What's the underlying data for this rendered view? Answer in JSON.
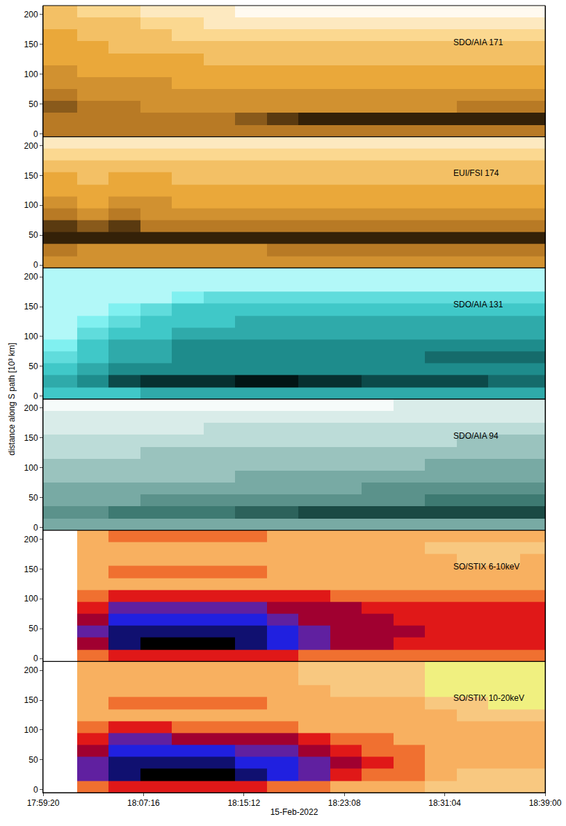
{
  "chart_data": {
    "type": "heatmap",
    "xlabel": "15-Feb-2022",
    "ylabel": "distance along S path [10³ km]",
    "x": [
      "2022-02-15 17:59:20",
      "2022-02-15 18:02:00",
      "2022-02-15 18:04:30",
      "2022-02-15 18:07:00",
      "2022-02-15 18:09:30",
      "2022-02-15 18:12:00",
      "2022-02-15 18:14:30",
      "2022-02-15 18:17:00",
      "2022-02-15 18:19:30",
      "2022-02-15 18:22:00",
      "2022-02-15 18:24:30",
      "2022-02-15 18:27:00",
      "2022-02-15 18:29:30",
      "2022-02-15 18:32:00",
      "2022-02-15 18:34:30",
      "2022-02-15 18:37:00",
      "2022-02-15 18:39:00"
    ],
    "y": [
      -5,
      15,
      35,
      55,
      75,
      95,
      115,
      135,
      155,
      175,
      195,
      215
    ],
    "xlim": [
      "2022-02-15 17:59:20",
      "2022-02-15 18:39:00"
    ],
    "xticks": [
      {
        "value": "2022-02-15 17:59:20",
        "label": "17:59:20"
      },
      {
        "value": "2022-02-15 18:07:16",
        "label": "18:07:16"
      },
      {
        "value": "2022-02-15 18:15:12",
        "label": "18:15:12"
      },
      {
        "value": "2022-02-15 18:23:08",
        "label": "18:23:08"
      },
      {
        "value": "2022-02-15 18:31:04",
        "label": "18:31:04"
      },
      {
        "value": "2022-02-15 18:39:00",
        "label": "18:39:00"
      }
    ],
    "ylim": [
      -5,
      215
    ],
    "yticks": [
      0,
      50,
      100,
      150,
      200
    ],
    "zlim": [
      0,
      10
    ],
    "panels": [
      {
        "title": "SDO/AIA 171",
        "color": "gold",
        "z": [
          [
            6,
            6,
            6,
            6,
            6,
            6,
            6,
            6,
            6,
            6,
            6,
            6,
            6,
            6,
            6,
            6
          ],
          [
            6,
            6,
            6,
            6,
            6,
            6,
            7,
            8,
            9,
            9,
            9,
            9,
            9,
            9,
            9,
            9
          ],
          [
            7,
            6,
            6,
            5,
            5,
            5,
            5,
            5,
            5,
            5,
            5,
            5,
            5,
            6,
            6,
            6
          ],
          [
            6,
            5,
            5,
            5,
            5,
            5,
            5,
            5,
            5,
            5,
            5,
            5,
            5,
            5,
            5,
            5
          ],
          [
            5,
            5,
            5,
            5,
            4,
            4,
            4,
            4,
            4,
            4,
            4,
            4,
            4,
            4,
            4,
            4
          ],
          [
            5,
            4,
            4,
            4,
            4,
            4,
            4,
            4,
            4,
            4,
            4,
            4,
            4,
            4,
            4,
            4
          ],
          [
            4,
            4,
            4,
            4,
            4,
            3,
            3,
            3,
            3,
            3,
            3,
            3,
            3,
            3,
            3,
            3
          ],
          [
            4,
            4,
            3,
            3,
            3,
            3,
            3,
            3,
            3,
            3,
            3,
            3,
            3,
            3,
            3,
            3
          ],
          [
            4,
            3,
            3,
            3,
            2,
            2,
            2,
            2,
            2,
            2,
            2,
            2,
            2,
            2,
            2,
            2
          ],
          [
            3,
            3,
            3,
            2,
            2,
            1,
            1,
            1,
            1,
            1,
            1,
            1,
            1,
            1,
            1,
            1
          ],
          [
            3,
            2,
            2,
            1,
            1,
            1,
            0,
            0,
            0,
            0,
            0,
            0,
            0,
            0,
            0,
            0
          ]
        ]
      },
      {
        "title": "EUI/FSI 174",
        "color": "gold",
        "z": [
          [
            5,
            5,
            5,
            5,
            5,
            5,
            5,
            5,
            5,
            5,
            5,
            5,
            5,
            5,
            5,
            5
          ],
          [
            6,
            5,
            5,
            5,
            5,
            5,
            5,
            6,
            6,
            6,
            6,
            6,
            6,
            6,
            6,
            6
          ],
          [
            9,
            9,
            9,
            9,
            9,
            9,
            9,
            9,
            9,
            9,
            9,
            9,
            9,
            9,
            9,
            9
          ],
          [
            8,
            7,
            8,
            6,
            6,
            6,
            6,
            6,
            6,
            6,
            6,
            6,
            6,
            6,
            6,
            6
          ],
          [
            6,
            5,
            6,
            5,
            5,
            5,
            5,
            5,
            5,
            5,
            5,
            5,
            5,
            5,
            5,
            5
          ],
          [
            5,
            4,
            5,
            5,
            4,
            4,
            4,
            4,
            4,
            4,
            4,
            4,
            4,
            4,
            4,
            4
          ],
          [
            4,
            4,
            4,
            4,
            4,
            4,
            4,
            4,
            4,
            4,
            4,
            4,
            4,
            4,
            4,
            4
          ],
          [
            4,
            3,
            4,
            4,
            3,
            3,
            3,
            3,
            3,
            3,
            3,
            3,
            3,
            3,
            3,
            3
          ],
          [
            3,
            3,
            3,
            3,
            3,
            3,
            3,
            3,
            3,
            3,
            3,
            3,
            3,
            3,
            3,
            3
          ],
          [
            2,
            2,
            2,
            2,
            2,
            2,
            2,
            2,
            2,
            2,
            2,
            2,
            2,
            2,
            2,
            2
          ],
          [
            1,
            1,
            1,
            1,
            1,
            1,
            1,
            1,
            1,
            1,
            1,
            1,
            1,
            1,
            1,
            1
          ]
        ]
      },
      {
        "title": "SDO/AIA 131",
        "color": "cyan",
        "z": [
          [
            4,
            4,
            4,
            5,
            5,
            5,
            5,
            5,
            5,
            5,
            5,
            5,
            5,
            5,
            5,
            5
          ],
          [
            5,
            6,
            8,
            9,
            9,
            9,
            10,
            10,
            9,
            9,
            8,
            8,
            8,
            8,
            7,
            7
          ],
          [
            4,
            5,
            6,
            6,
            6,
            6,
            6,
            6,
            6,
            6,
            6,
            6,
            6,
            6,
            6,
            6
          ],
          [
            3,
            4,
            5,
            5,
            6,
            6,
            6,
            6,
            6,
            6,
            6,
            6,
            7,
            7,
            7,
            7
          ],
          [
            2,
            4,
            5,
            5,
            6,
            6,
            6,
            6,
            6,
            6,
            6,
            6,
            6,
            6,
            6,
            6
          ],
          [
            1,
            3,
            4,
            4,
            5,
            5,
            5,
            5,
            5,
            5,
            5,
            5,
            5,
            5,
            5,
            5
          ],
          [
            1,
            2,
            3,
            4,
            4,
            4,
            5,
            5,
            5,
            5,
            5,
            5,
            5,
            5,
            5,
            5
          ],
          [
            1,
            1,
            2,
            3,
            4,
            4,
            4,
            4,
            4,
            4,
            4,
            4,
            4,
            4,
            4,
            4
          ],
          [
            1,
            1,
            1,
            1,
            2,
            3,
            3,
            3,
            3,
            3,
            3,
            3,
            3,
            3,
            3,
            3
          ],
          [
            1,
            1,
            1,
            1,
            1,
            1,
            1,
            1,
            1,
            1,
            1,
            1,
            1,
            1,
            1,
            1
          ],
          [
            1,
            1,
            1,
            1,
            1,
            1,
            1,
            1,
            1,
            1,
            1,
            1,
            1,
            1,
            1,
            1
          ]
        ]
      },
      {
        "title": "SDO/AIA 94",
        "color": "teal",
        "z": [
          [
            4,
            4,
            4,
            4,
            4,
            4,
            4,
            4,
            4,
            4,
            4,
            4,
            4,
            4,
            4,
            4
          ],
          [
            5,
            5,
            6,
            6,
            6,
            6,
            7,
            7,
            8,
            8,
            8,
            8,
            8,
            8,
            8,
            8
          ],
          [
            4,
            4,
            4,
            5,
            5,
            5,
            5,
            5,
            5,
            5,
            5,
            5,
            6,
            6,
            6,
            6
          ],
          [
            4,
            4,
            4,
            4,
            4,
            4,
            4,
            4,
            4,
            4,
            5,
            5,
            5,
            5,
            5,
            5
          ],
          [
            3,
            3,
            3,
            3,
            3,
            3,
            4,
            4,
            4,
            4,
            4,
            4,
            4,
            4,
            4,
            4
          ],
          [
            3,
            3,
            3,
            3,
            3,
            3,
            3,
            3,
            3,
            3,
            3,
            3,
            4,
            4,
            4,
            4
          ],
          [
            2,
            2,
            2,
            3,
            3,
            3,
            3,
            3,
            3,
            3,
            3,
            3,
            3,
            3,
            3,
            3
          ],
          [
            2,
            2,
            2,
            2,
            2,
            2,
            2,
            2,
            2,
            2,
            2,
            2,
            2,
            3,
            3,
            3
          ],
          [
            1,
            1,
            1,
            1,
            1,
            2,
            2,
            2,
            2,
            2,
            2,
            2,
            2,
            2,
            2,
            2
          ],
          [
            1,
            1,
            1,
            1,
            1,
            1,
            1,
            1,
            1,
            1,
            1,
            1,
            1,
            1,
            1,
            1
          ],
          [
            0,
            0,
            0,
            0,
            0,
            0,
            0,
            0,
            0,
            0,
            0,
            1,
            1,
            1,
            1,
            1
          ]
        ]
      },
      {
        "title": "SO/STIX 6-10keV",
        "color": "stix",
        "z": [
          [
            null,
            4,
            5,
            5,
            5,
            5,
            5,
            5,
            4,
            4,
            4,
            4,
            4,
            4,
            4,
            4
          ],
          [
            null,
            6,
            9,
            10,
            10,
            10,
            9,
            8,
            7,
            6,
            6,
            5,
            5,
            5,
            5,
            5
          ],
          [
            null,
            7,
            9,
            9,
            9,
            9,
            9,
            8,
            7,
            6,
            6,
            6,
            5,
            5,
            5,
            5
          ],
          [
            null,
            6,
            8,
            8,
            8,
            8,
            8,
            7,
            6,
            6,
            6,
            5,
            5,
            5,
            5,
            5
          ],
          [
            null,
            5,
            7,
            7,
            7,
            7,
            7,
            6,
            6,
            6,
            5,
            5,
            5,
            5,
            5,
            5
          ],
          [
            null,
            4,
            5,
            5,
            5,
            5,
            5,
            5,
            5,
            4,
            4,
            4,
            4,
            4,
            4,
            4
          ],
          [
            null,
            3,
            3,
            3,
            3,
            3,
            3,
            3,
            3,
            3,
            3,
            3,
            3,
            3,
            3,
            3
          ],
          [
            null,
            3,
            4,
            4,
            4,
            4,
            4,
            3,
            3,
            3,
            3,
            3,
            3,
            3,
            3,
            3
          ],
          [
            null,
            3,
            3,
            3,
            3,
            3,
            3,
            3,
            3,
            3,
            3,
            3,
            3,
            2,
            2,
            3
          ],
          [
            null,
            3,
            3,
            3,
            3,
            3,
            3,
            3,
            3,
            3,
            3,
            3,
            2,
            2,
            2,
            2
          ],
          [
            null,
            3,
            4,
            4,
            4,
            4,
            4,
            3,
            3,
            3,
            3,
            3,
            3,
            3,
            3,
            3
          ]
        ]
      },
      {
        "title": "SO/STIX 10-20keV",
        "color": "stix",
        "z": [
          [
            null,
            4,
            5,
            5,
            5,
            5,
            5,
            4,
            4,
            3,
            3,
            3,
            2,
            2,
            2,
            2
          ],
          [
            null,
            7,
            9,
            10,
            10,
            10,
            9,
            8,
            7,
            5,
            4,
            4,
            3,
            2,
            2,
            2
          ],
          [
            null,
            7,
            9,
            9,
            9,
            9,
            8,
            8,
            7,
            6,
            5,
            4,
            3,
            3,
            3,
            3
          ],
          [
            null,
            6,
            8,
            8,
            8,
            8,
            7,
            7,
            6,
            5,
            4,
            4,
            3,
            3,
            3,
            3
          ],
          [
            null,
            5,
            7,
            7,
            6,
            6,
            6,
            6,
            5,
            4,
            4,
            3,
            3,
            3,
            3,
            3
          ],
          [
            null,
            4,
            5,
            5,
            4,
            4,
            4,
            4,
            3,
            3,
            3,
            3,
            3,
            3,
            3,
            3
          ],
          [
            null,
            3,
            3,
            3,
            3,
            3,
            3,
            3,
            3,
            3,
            3,
            3,
            3,
            2,
            2,
            2
          ],
          [
            null,
            3,
            4,
            4,
            4,
            4,
            4,
            3,
            3,
            3,
            3,
            3,
            2,
            2,
            1,
            1
          ],
          [
            null,
            3,
            3,
            3,
            3,
            3,
            3,
            3,
            3,
            2,
            2,
            2,
            1,
            1,
            1,
            1
          ],
          [
            null,
            3,
            3,
            3,
            3,
            3,
            3,
            3,
            2,
            2,
            2,
            2,
            1,
            1,
            1,
            1
          ],
          [
            null,
            3,
            3,
            3,
            3,
            3,
            3,
            3,
            2,
            2,
            2,
            2,
            1,
            1,
            1,
            1
          ]
        ]
      }
    ]
  }
}
